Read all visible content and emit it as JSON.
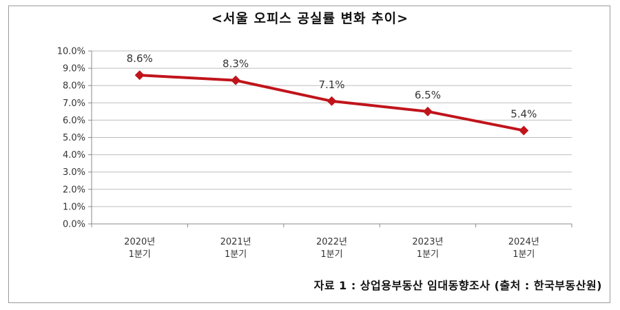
{
  "chart_data": {
    "type": "line",
    "title": "<서울 오피스 공실률 변화 추이>",
    "categories": [
      [
        "2020년",
        "1분기"
      ],
      [
        "2021년",
        "1분기"
      ],
      [
        "2022년",
        "1분기"
      ],
      [
        "2023년",
        "1분기"
      ],
      [
        "2024년",
        "1분기"
      ]
    ],
    "values": [
      8.6,
      8.3,
      7.1,
      6.5,
      5.4
    ],
    "data_labels": [
      "8.6%",
      "8.3%",
      "7.1%",
      "6.5%",
      "5.4%"
    ],
    "y_ticks": [
      "0.0%",
      "1.0%",
      "2.0%",
      "3.0%",
      "4.0%",
      "5.0%",
      "6.0%",
      "7.0%",
      "8.0%",
      "9.0%",
      "10.0%"
    ],
    "ylim": [
      0,
      10
    ],
    "grid": true,
    "legend": "none",
    "series_color": "#c0141b",
    "marker": "diamond",
    "source": "자료 1 : 상업용부동산 임대동향조사 (출처 : 한국부동산원)"
  }
}
